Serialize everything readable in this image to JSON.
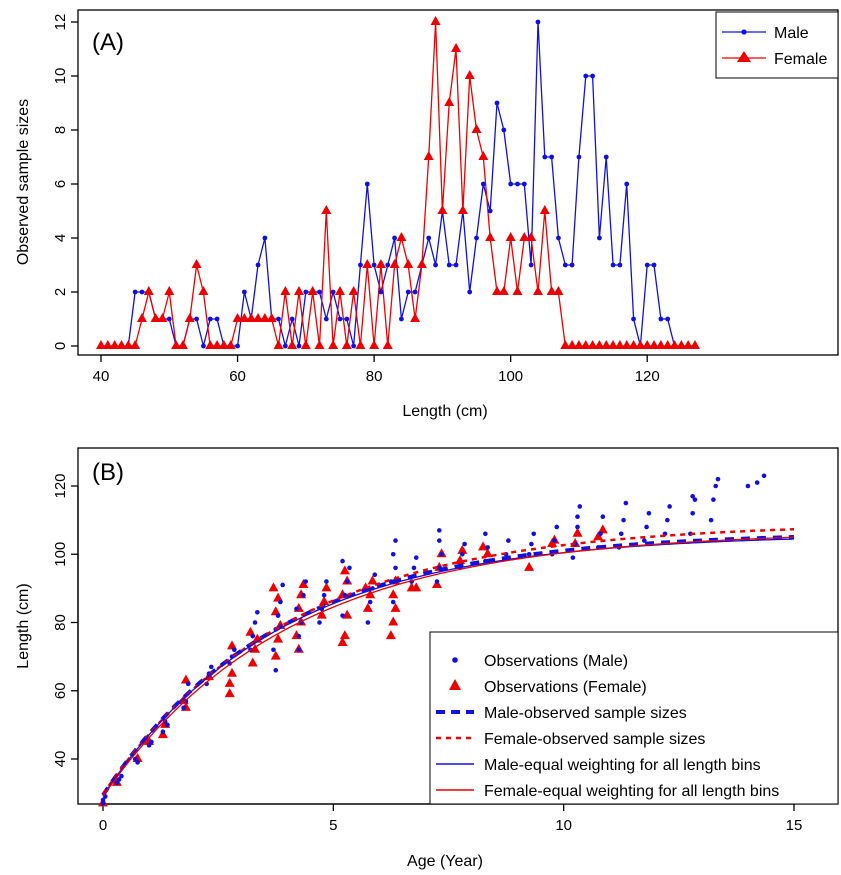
{
  "colors": {
    "male": "#1010e0",
    "female": "#ee0000"
  },
  "chart_data": [
    {
      "type": "line",
      "panel_label": "(A)",
      "xlabel": "Length (cm)",
      "ylabel": "Observed sample sizes",
      "xlim": [
        40,
        127
      ],
      "ylim": [
        0,
        12
      ],
      "xticks": [
        40,
        60,
        80,
        100,
        120
      ],
      "yticks": [
        0,
        2,
        4,
        6,
        8,
        10,
        12
      ],
      "legend_position": "top-right",
      "series": [
        {
          "name": "Male",
          "color_key": "male",
          "marker": "circle",
          "x": [
            40,
            41,
            42,
            43,
            44,
            45,
            46,
            47,
            48,
            49,
            50,
            51,
            52,
            53,
            54,
            55,
            56,
            57,
            58,
            59,
            60,
            61,
            62,
            63,
            64,
            65,
            66,
            67,
            68,
            69,
            70,
            71,
            72,
            73,
            74,
            75,
            76,
            77,
            78,
            79,
            80,
            81,
            82,
            83,
            84,
            85,
            86,
            87,
            88,
            89,
            90,
            91,
            92,
            93,
            94,
            95,
            96,
            97,
            98,
            99,
            100,
            101,
            102,
            103,
            104,
            105,
            106,
            107,
            108,
            109,
            110,
            111,
            112,
            113,
            114,
            115,
            116,
            117,
            118,
            119,
            120,
            121,
            122,
            123,
            124,
            125,
            126,
            127
          ],
          "y": [
            0,
            0,
            0,
            0,
            0,
            2,
            2,
            2,
            1,
            1,
            1,
            0,
            0,
            1,
            1,
            0,
            1,
            1,
            0,
            0,
            0,
            2,
            1,
            3,
            4,
            1,
            1,
            0,
            1,
            0,
            2,
            2,
            2,
            1,
            2,
            1,
            1,
            0,
            3,
            6,
            3,
            2,
            3,
            4,
            1,
            2,
            2,
            3,
            4,
            3,
            5,
            3,
            3,
            5,
            2,
            4,
            6,
            5,
            9,
            8,
            6,
            6,
            6,
            3,
            12,
            7,
            7,
            4,
            3,
            3,
            7,
            10,
            10,
            4,
            7,
            3,
            3,
            6,
            1,
            0,
            3,
            3,
            1,
            1,
            0,
            0,
            0,
            0
          ]
        },
        {
          "name": "Female",
          "color_key": "female",
          "marker": "triangle",
          "x": [
            40,
            41,
            42,
            43,
            44,
            45,
            46,
            47,
            48,
            49,
            50,
            51,
            52,
            53,
            54,
            55,
            56,
            57,
            58,
            59,
            60,
            61,
            62,
            63,
            64,
            65,
            66,
            67,
            68,
            69,
            70,
            71,
            72,
            73,
            74,
            75,
            76,
            77,
            78,
            79,
            80,
            81,
            82,
            83,
            84,
            85,
            86,
            87,
            88,
            89,
            90,
            91,
            92,
            93,
            94,
            95,
            96,
            97,
            98,
            99,
            100,
            101,
            102,
            103,
            104,
            105,
            106,
            107,
            108,
            109,
            110,
            111,
            112,
            113,
            114,
            115,
            116,
            117,
            118,
            119,
            120,
            121,
            122,
            123,
            124,
            125,
            126,
            127
          ],
          "y": [
            0,
            0,
            0,
            0,
            0,
            0,
            1,
            2,
            1,
            1,
            2,
            0,
            0,
            1,
            3,
            2,
            0,
            0,
            0,
            0,
            1,
            1,
            1,
            1,
            1,
            1,
            0,
            2,
            0,
            2,
            0,
            2,
            0,
            5,
            0,
            2,
            0,
            2,
            0,
            3,
            0,
            3,
            0,
            3,
            4,
            3,
            1,
            3,
            7,
            12,
            5,
            9,
            11,
            5,
            10,
            8,
            7,
            4,
            2,
            2,
            4,
            2,
            4,
            4,
            2,
            5,
            2,
            2,
            0,
            0,
            0,
            0,
            0,
            0,
            0,
            0,
            0,
            0,
            0,
            0,
            0,
            0,
            0,
            0,
            0,
            0,
            0,
            0
          ]
        }
      ]
    },
    {
      "type": "scatter",
      "panel_label": "(B)",
      "xlabel": "Age (Year)",
      "ylabel": "Length (cm)",
      "xlim": [
        -0.6,
        16.2
      ],
      "ylim": [
        25,
        133
      ],
      "xticks": [
        0,
        5,
        10,
        15
      ],
      "yticks": [
        40,
        60,
        80,
        100,
        120
      ],
      "legend_position": "bottom-right",
      "observations_male": [
        [
          0,
          27
        ],
        [
          0,
          28
        ],
        [
          0.05,
          29
        ],
        [
          0.3,
          33
        ],
        [
          0.35,
          34
        ],
        [
          0.4,
          35
        ],
        [
          0.7,
          40
        ],
        [
          0.75,
          39
        ],
        [
          1,
          44
        ],
        [
          1.05,
          45
        ],
        [
          1.3,
          48
        ],
        [
          1.35,
          51
        ],
        [
          1.4,
          50
        ],
        [
          1.75,
          55
        ],
        [
          1.8,
          57
        ],
        [
          1.85,
          62
        ],
        [
          2.25,
          62
        ],
        [
          2.3,
          65
        ],
        [
          2.35,
          67
        ],
        [
          2.75,
          68
        ],
        [
          2.8,
          70
        ],
        [
          2.85,
          72
        ],
        [
          3.2,
          72
        ],
        [
          3.25,
          76
        ],
        [
          3.3,
          80
        ],
        [
          3.35,
          83
        ],
        [
          3.7,
          72
        ],
        [
          3.75,
          78
        ],
        [
          3.8,
          82
        ],
        [
          3.85,
          86
        ],
        [
          3.9,
          91
        ],
        [
          3.75,
          66
        ],
        [
          4.25,
          76
        ],
        [
          4.3,
          80
        ],
        [
          4.2,
          84
        ],
        [
          4.35,
          88
        ],
        [
          4.4,
          92
        ],
        [
          4.25,
          72
        ],
        [
          4.7,
          80
        ],
        [
          4.75,
          84
        ],
        [
          4.8,
          88
        ],
        [
          4.85,
          92
        ],
        [
          5.2,
          82
        ],
        [
          5.25,
          88
        ],
        [
          5.3,
          92
        ],
        [
          5.35,
          96
        ],
        [
          5.2,
          98
        ],
        [
          5.75,
          80
        ],
        [
          5.8,
          86
        ],
        [
          5.85,
          90
        ],
        [
          5.9,
          94
        ],
        [
          6.3,
          86
        ],
        [
          6.25,
          92
        ],
        [
          6.35,
          96
        ],
        [
          6.3,
          100
        ],
        [
          6.35,
          104
        ],
        [
          6.7,
          92
        ],
        [
          6.75,
          96
        ],
        [
          6.8,
          99
        ],
        [
          7.25,
          92
        ],
        [
          7.3,
          96
        ],
        [
          7.35,
          100
        ],
        [
          7.3,
          104
        ],
        [
          7.3,
          107
        ],
        [
          7.75,
          96
        ],
        [
          7.8,
          100
        ],
        [
          7.85,
          103
        ],
        [
          8.3,
          98
        ],
        [
          8.35,
          102
        ],
        [
          8.3,
          106
        ],
        [
          8.75,
          100
        ],
        [
          8.8,
          104
        ],
        [
          9.25,
          100
        ],
        [
          9.3,
          103
        ],
        [
          9.35,
          106
        ],
        [
          9.75,
          100
        ],
        [
          9.8,
          104
        ],
        [
          9.85,
          108
        ],
        [
          10.2,
          99
        ],
        [
          10.25,
          103
        ],
        [
          10.3,
          108
        ],
        [
          10.35,
          114
        ],
        [
          10.3,
          111
        ],
        [
          10.75,
          102
        ],
        [
          10.8,
          106
        ],
        [
          10.85,
          111
        ],
        [
          11.2,
          102
        ],
        [
          11.25,
          106
        ],
        [
          11.3,
          110
        ],
        [
          11.35,
          115
        ],
        [
          11.75,
          104
        ],
        [
          11.8,
          108
        ],
        [
          11.85,
          112
        ],
        [
          12.2,
          106
        ],
        [
          12.25,
          110
        ],
        [
          12.3,
          114
        ],
        [
          12.75,
          106
        ],
        [
          12.8,
          112
        ],
        [
          12.85,
          116
        ],
        [
          12.8,
          117
        ],
        [
          13.2,
          110
        ],
        [
          13.25,
          116
        ],
        [
          13.3,
          120
        ],
        [
          13.35,
          122
        ],
        [
          14.0,
          120
        ],
        [
          14.2,
          121
        ],
        [
          14.35,
          123
        ]
      ],
      "observations_female": [
        [
          0,
          27
        ],
        [
          0.3,
          33
        ],
        [
          0.75,
          40
        ],
        [
          1,
          45
        ],
        [
          1.3,
          47
        ],
        [
          1.35,
          50
        ],
        [
          1.8,
          55
        ],
        [
          1.8,
          63
        ],
        [
          1.75,
          57
        ],
        [
          2.3,
          64
        ],
        [
          2.75,
          62
        ],
        [
          2.8,
          65
        ],
        [
          2.8,
          73
        ],
        [
          2.75,
          59
        ],
        [
          3.25,
          68
        ],
        [
          3.3,
          72
        ],
        [
          3.2,
          77
        ],
        [
          3.35,
          75
        ],
        [
          3.75,
          70
        ],
        [
          3.8,
          75
        ],
        [
          3.85,
          79
        ],
        [
          3.75,
          83
        ],
        [
          3.8,
          87
        ],
        [
          3.7,
          90
        ],
        [
          4.25,
          72
        ],
        [
          4.2,
          76
        ],
        [
          4.3,
          80
        ],
        [
          4.25,
          84
        ],
        [
          4.3,
          88
        ],
        [
          4.35,
          91
        ],
        [
          4.75,
          82
        ],
        [
          4.8,
          86
        ],
        [
          4.85,
          90
        ],
        [
          5.2,
          74
        ],
        [
          5.25,
          76
        ],
        [
          5.3,
          82
        ],
        [
          5.2,
          88
        ],
        [
          5.3,
          92
        ],
        [
          5.25,
          95
        ],
        [
          5.75,
          84
        ],
        [
          5.8,
          88
        ],
        [
          5.85,
          92
        ],
        [
          5.7,
          90
        ],
        [
          6.25,
          76
        ],
        [
          6.3,
          80
        ],
        [
          6.35,
          84
        ],
        [
          6.3,
          88
        ],
        [
          6.35,
          92
        ],
        [
          6.7,
          90
        ],
        [
          6.8,
          90
        ],
        [
          7.25,
          91
        ],
        [
          7.3,
          96
        ],
        [
          7.35,
          100
        ],
        [
          7.75,
          98
        ],
        [
          7.8,
          101
        ],
        [
          8.25,
          102
        ],
        [
          8.35,
          100
        ],
        [
          9.25,
          96
        ],
        [
          9.75,
          103
        ],
        [
          9.8,
          104
        ],
        [
          10.25,
          103
        ],
        [
          10.3,
          106
        ],
        [
          10.75,
          105
        ],
        [
          10.85,
          107
        ]
      ],
      "curves": {
        "linf_male": 106.5,
        "k_male": 0.265,
        "t0_male": -1.22,
        "linf_female": 109.2,
        "k_female": 0.25,
        "t0_female": -1.27,
        "age_max": 15
      },
      "legend": [
        {
          "label": "Observations (Male)",
          "kind": "dot",
          "color_key": "male"
        },
        {
          "label": "Observations (Female)",
          "kind": "triangle",
          "color_key": "female"
        },
        {
          "label": "Male-observed sample sizes",
          "kind": "dash-thick",
          "color_key": "male"
        },
        {
          "label": "Female-observed sample sizes",
          "kind": "dash",
          "color_key": "female"
        },
        {
          "label": "Male-equal weighting for all length bins",
          "kind": "line",
          "color_key": "male"
        },
        {
          "label": "Female-equal weighting for all length bins",
          "kind": "line",
          "color_key": "female"
        }
      ]
    }
  ]
}
